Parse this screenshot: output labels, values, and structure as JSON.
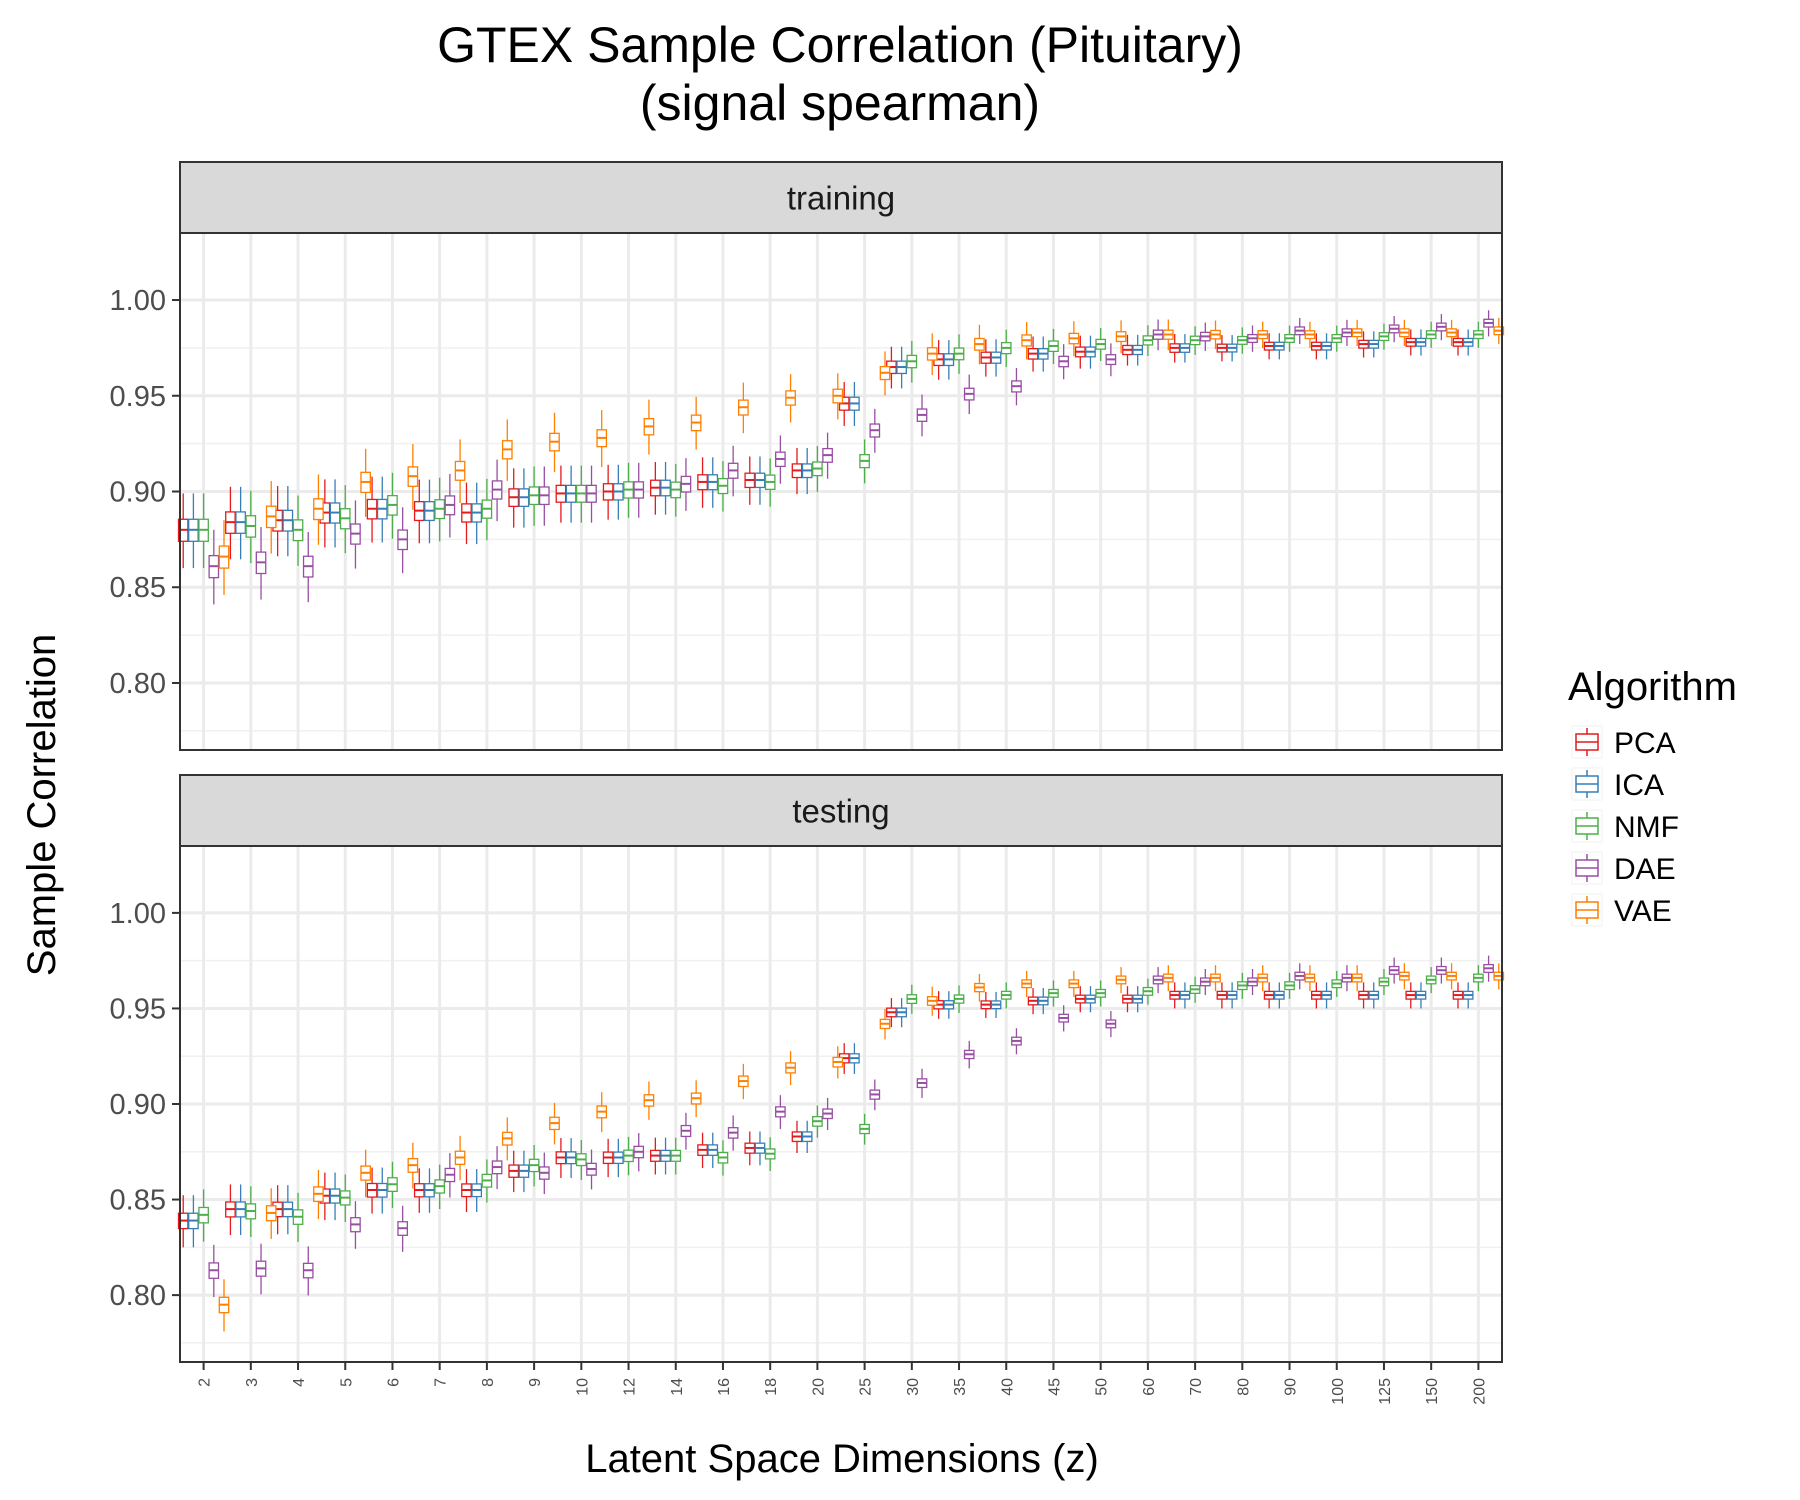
{
  "chart_data": {
    "type": "box",
    "title": "GTEX Sample Correlation (Pituitary)",
    "subtitle": "(signal spearman)",
    "xlabel": "Latent Space Dimensions (z)",
    "ylabel": "Sample Correlation",
    "ylim": [
      0.765,
      1.035
    ],
    "yticks": [
      "0.80",
      "0.85",
      "0.90",
      "0.95",
      "1.00"
    ],
    "grid": true,
    "legend": {
      "title": "Algorithm",
      "position": "right",
      "entries": [
        {
          "name": "PCA",
          "color": "#e41a1c"
        },
        {
          "name": "ICA",
          "color": "#377eb8"
        },
        {
          "name": "NMF",
          "color": "#4daf4a"
        },
        {
          "name": "DAE",
          "color": "#984ea3"
        },
        {
          "name": "VAE",
          "color": "#ff7f00"
        }
      ]
    },
    "categories": [
      "2",
      "3",
      "4",
      "5",
      "6",
      "7",
      "8",
      "9",
      "10",
      "12",
      "14",
      "16",
      "18",
      "20",
      "25",
      "30",
      "35",
      "40",
      "45",
      "50",
      "60",
      "70",
      "80",
      "90",
      "100",
      "125",
      "150",
      "200"
    ],
    "panels": [
      {
        "label": "training",
        "series": [
          {
            "name": "PCA",
            "medians": [
              0.88,
              0.884,
              0.885,
              0.889,
              0.891,
              0.89,
              0.889,
              0.897,
              0.899,
              0.9,
              0.902,
              0.905,
              0.906,
              0.911,
              0.946,
              0.965,
              0.969,
              0.97,
              0.972,
              0.973,
              0.974,
              0.975,
              0.975,
              0.976,
              0.976,
              0.977,
              0.978,
              0.978
            ]
          },
          {
            "name": "ICA",
            "medians": [
              0.88,
              0.884,
              0.885,
              0.889,
              0.891,
              0.89,
              0.889,
              0.897,
              0.899,
              0.9,
              0.902,
              0.905,
              0.906,
              0.911,
              0.946,
              0.965,
              0.969,
              0.97,
              0.972,
              0.973,
              0.974,
              0.975,
              0.975,
              0.976,
              0.976,
              0.977,
              0.978,
              0.978
            ]
          },
          {
            "name": "NMF",
            "medians": [
              0.88,
              0.882,
              0.88,
              0.886,
              0.893,
              0.891,
              0.891,
              0.898,
              0.899,
              0.901,
              0.901,
              0.903,
              0.905,
              0.912,
              0.916,
              0.968,
              0.972,
              0.975,
              0.976,
              0.977,
              0.979,
              0.979,
              0.979,
              0.98,
              0.98,
              0.981,
              0.982,
              0.982
            ]
          },
          {
            "name": "DAE",
            "medians": [
              0.861,
              0.863,
              0.861,
              0.878,
              0.875,
              0.893,
              0.901,
              0.898,
              0.899,
              0.901,
              0.904,
              0.911,
              0.917,
              0.919,
              0.932,
              0.94,
              0.951,
              0.955,
              0.968,
              0.969,
              0.982,
              0.981,
              0.98,
              0.984,
              0.983,
              0.985,
              0.986,
              0.988
            ]
          },
          {
            "name": "VAE",
            "medians": [
              0.866,
              0.887,
              0.891,
              0.905,
              0.908,
              0.911,
              0.922,
              0.926,
              0.928,
              0.934,
              0.936,
              0.944,
              0.949,
              0.95,
              0.962,
              0.972,
              0.977,
              0.979,
              0.98,
              0.981,
              0.982,
              0.982,
              0.982,
              0.982,
              0.983,
              0.983,
              0.983,
              0.984
            ]
          }
        ]
      },
      {
        "label": "testing",
        "series": [
          {
            "name": "PCA",
            "medians": [
              0.839,
              0.845,
              0.845,
              0.852,
              0.855,
              0.855,
              0.855,
              0.865,
              0.872,
              0.872,
              0.873,
              0.876,
              0.877,
              0.883,
              0.924,
              0.948,
              0.952,
              0.952,
              0.954,
              0.955,
              0.955,
              0.957,
              0.957,
              0.957,
              0.957,
              0.957,
              0.957,
              0.957
            ]
          },
          {
            "name": "ICA",
            "medians": [
              0.839,
              0.845,
              0.845,
              0.852,
              0.855,
              0.855,
              0.855,
              0.865,
              0.872,
              0.872,
              0.873,
              0.876,
              0.877,
              0.883,
              0.924,
              0.948,
              0.952,
              0.952,
              0.954,
              0.955,
              0.955,
              0.957,
              0.957,
              0.957,
              0.957,
              0.957,
              0.957,
              0.957
            ]
          },
          {
            "name": "NMF",
            "medians": [
              0.842,
              0.844,
              0.841,
              0.851,
              0.858,
              0.857,
              0.86,
              0.868,
              0.871,
              0.873,
              0.873,
              0.872,
              0.874,
              0.891,
              0.887,
              0.955,
              0.955,
              0.957,
              0.958,
              0.958,
              0.959,
              0.96,
              0.962,
              0.962,
              0.963,
              0.964,
              0.965,
              0.966
            ]
          },
          {
            "name": "DAE",
            "medians": [
              0.813,
              0.814,
              0.813,
              0.837,
              0.835,
              0.863,
              0.867,
              0.864,
              0.866,
              0.875,
              0.886,
              0.885,
              0.896,
              0.895,
              0.905,
              0.911,
              0.926,
              0.933,
              0.945,
              0.942,
              0.965,
              0.964,
              0.964,
              0.967,
              0.966,
              0.97,
              0.97,
              0.971
            ]
          },
          {
            "name": "VAE",
            "medians": [
              0.795,
              0.843,
              0.853,
              0.864,
              0.868,
              0.872,
              0.882,
              0.89,
              0.896,
              0.902,
              0.903,
              0.912,
              0.919,
              0.922,
              0.942,
              0.954,
              0.961,
              0.963,
              0.963,
              0.965,
              0.966,
              0.966,
              0.966,
              0.966,
              0.966,
              0.967,
              0.967,
              0.967
            ]
          }
        ]
      }
    ]
  }
}
